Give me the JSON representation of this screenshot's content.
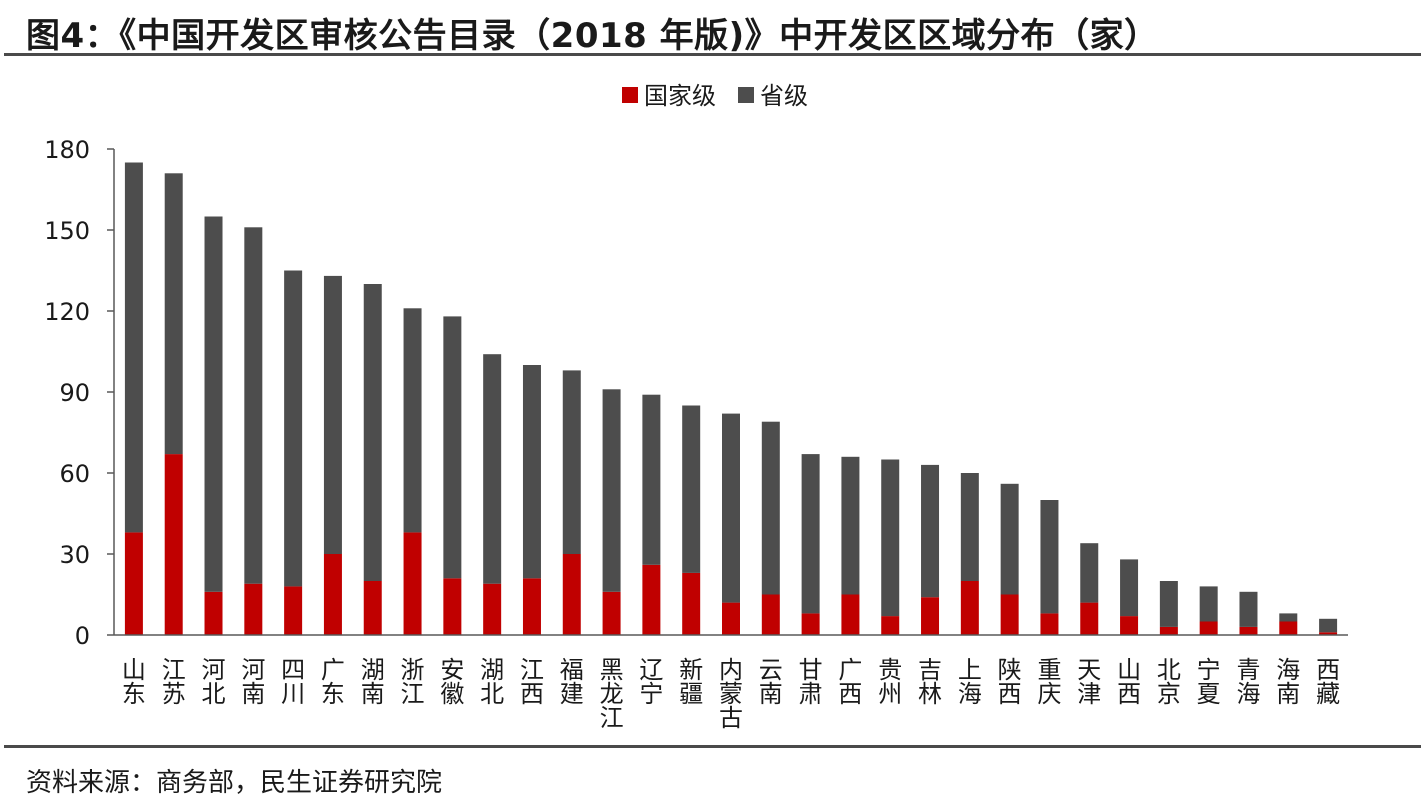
{
  "title": "图4：《中国开发区审核公告目录（2018 年版)》中开发区区域分布（家）",
  "source": "资料来源：商务部，民生证券研究院",
  "colors": {
    "national": "#c00000",
    "provincial": "#4d4d4d",
    "axis": "#595959"
  },
  "chart_data": {
    "type": "bar",
    "stacked": true,
    "title": "",
    "xlabel": "",
    "ylabel": "",
    "ylim": [
      0,
      180
    ],
    "yticks": [
      0,
      30,
      60,
      90,
      120,
      150,
      180
    ],
    "legend_position": "top-center",
    "grid": false,
    "categories": [
      "山东",
      "江苏",
      "河北",
      "河南",
      "四川",
      "广东",
      "湖南",
      "浙江",
      "安徽",
      "湖北",
      "江西",
      "福建",
      "黑龙江",
      "辽宁",
      "新疆",
      "内蒙古",
      "云南",
      "甘肃",
      "广西",
      "贵州",
      "吉林",
      "上海",
      "陕西",
      "重庆",
      "天津",
      "山西",
      "北京",
      "宁夏",
      "青海",
      "海南",
      "西藏"
    ],
    "series": [
      {
        "name": "国家级",
        "color": "#c00000",
        "values": [
          38,
          67,
          16,
          19,
          18,
          30,
          20,
          38,
          21,
          19,
          21,
          30,
          16,
          26,
          23,
          12,
          15,
          8,
          15,
          7,
          14,
          20,
          15,
          8,
          12,
          7,
          3,
          5,
          3,
          5,
          1
        ]
      },
      {
        "name": "省级",
        "color": "#4d4d4d",
        "values": [
          137,
          104,
          139,
          132,
          117,
          103,
          110,
          83,
          97,
          85,
          79,
          68,
          75,
          63,
          62,
          70,
          64,
          59,
          51,
          58,
          49,
          40,
          41,
          42,
          22,
          21,
          17,
          13,
          13,
          3,
          5
        ]
      }
    ]
  }
}
